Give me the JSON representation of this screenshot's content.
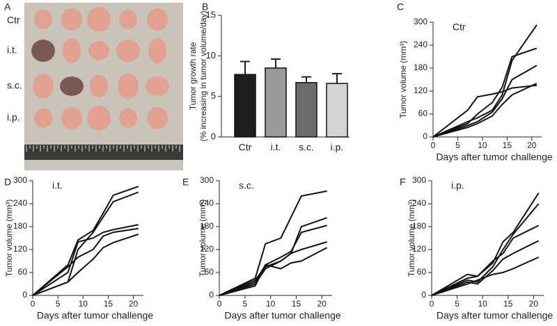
{
  "photo": {
    "panel_label": "A",
    "row_labels": [
      "Ctr",
      "i.t.",
      "s.c.",
      "i.p."
    ]
  },
  "chart_data": [
    {
      "type": "bar",
      "panel_label": "B",
      "ylabel": [
        "Tumor growth rate",
        "(% increasing in tumor volume/day)"
      ],
      "categories": [
        "Ctr",
        "i.t.",
        "s.c.",
        "i.p."
      ],
      "values": [
        7.7,
        8.5,
        6.7,
        6.6
      ],
      "errors": [
        1.6,
        1.1,
        0.7,
        1.2
      ],
      "colors": [
        "#1e1e1e",
        "#9a9a9a",
        "#6c6c6c",
        "#d4d4d4"
      ],
      "ylim": [
        0,
        15
      ],
      "yticks": [
        0,
        5,
        10,
        15
      ]
    },
    {
      "type": "line",
      "panel_label": "C",
      "title": "Ctr",
      "xlabel": "Days after tumor challenge",
      "ylabel": "Tumor volume (mm³)",
      "x": [
        0,
        7,
        9,
        12,
        14,
        16,
        21
      ],
      "color": "#111111",
      "xlim": [
        0,
        22
      ],
      "xticks": [
        0,
        5,
        10,
        15,
        20
      ],
      "ylim": [
        0,
        300
      ],
      "yticks": [
        0,
        60,
        120,
        180,
        240,
        300
      ],
      "series": [
        {
          "values": [
            0,
            40,
            50,
            70,
            110,
            200,
            293
          ]
        },
        {
          "values": [
            0,
            35,
            60,
            90,
            130,
            210,
            232
          ]
        },
        {
          "values": [
            0,
            30,
            40,
            65,
            100,
            150,
            187
          ]
        },
        {
          "values": [
            0,
            70,
            105,
            112,
            118,
            128,
            135
          ]
        },
        {
          "values": [
            0,
            25,
            35,
            55,
            85,
            110,
            140
          ]
        }
      ]
    },
    {
      "type": "line",
      "panel_label": "D",
      "title": "i.t.",
      "xlabel": "Days after tumor challenge",
      "ylabel": "Tumor volume (mm³)",
      "x": [
        0,
        7,
        9,
        12,
        14,
        16,
        21
      ],
      "color": "#111111",
      "xlim": [
        0,
        22
      ],
      "xticks": [
        0,
        5,
        10,
        15,
        20
      ],
      "ylim": [
        0,
        300
      ],
      "yticks": [
        0,
        60,
        120,
        180,
        240,
        300
      ],
      "series": [
        {
          "values": [
            0,
            80,
            145,
            170,
            215,
            262,
            285
          ]
        },
        {
          "values": [
            0,
            35,
            120,
            165,
            205,
            245,
            270
          ]
        },
        {
          "values": [
            0,
            60,
            140,
            150,
            165,
            172,
            185
          ]
        },
        {
          "values": [
            0,
            75,
            100,
            120,
            155,
            165,
            175
          ]
        },
        {
          "values": [
            0,
            35,
            60,
            95,
            125,
            138,
            160
          ]
        }
      ]
    },
    {
      "type": "line",
      "panel_label": "E",
      "title": "s.c.",
      "xlabel": "Days after tumor challenge",
      "ylabel": "Tumor volume (mm³)",
      "x": [
        0,
        7,
        9,
        12,
        14,
        16,
        21
      ],
      "color": "#111111",
      "xlim": [
        0,
        22
      ],
      "xticks": [
        0,
        5,
        10,
        15,
        20
      ],
      "ylim": [
        0,
        300
      ],
      "yticks": [
        0,
        60,
        120,
        180,
        240,
        300
      ],
      "series": [
        {
          "values": [
            0,
            45,
            135,
            150,
            205,
            260,
            273
          ]
        },
        {
          "values": [
            0,
            40,
            75,
            90,
            110,
            180,
            203
          ]
        },
        {
          "values": [
            0,
            35,
            80,
            100,
            115,
            165,
            183
          ]
        },
        {
          "values": [
            0,
            30,
            70,
            90,
            110,
            120,
            140
          ]
        },
        {
          "values": [
            0,
            25,
            80,
            70,
            85,
            90,
            125
          ]
        }
      ]
    },
    {
      "type": "line",
      "panel_label": "F",
      "title": "i.p.",
      "xlabel": "Days after tumor challenge",
      "ylabel": "Tumor volume (mm³)",
      "x": [
        0,
        7,
        9,
        12,
        14,
        16,
        21
      ],
      "color": "#111111",
      "xlim": [
        0,
        22
      ],
      "xticks": [
        0,
        5,
        10,
        15,
        20
      ],
      "ylim": [
        0,
        300
      ],
      "yticks": [
        0,
        60,
        120,
        180,
        240,
        300
      ],
      "series": [
        {
          "values": [
            0,
            45,
            50,
            85,
            140,
            165,
            268
          ]
        },
        {
          "values": [
            0,
            40,
            35,
            75,
            120,
            160,
            240
          ]
        },
        {
          "values": [
            0,
            55,
            50,
            90,
            110,
            150,
            183
          ]
        },
        {
          "values": [
            0,
            35,
            30,
            65,
            95,
            110,
            143
          ]
        },
        {
          "values": [
            0,
            30,
            40,
            55,
            60,
            70,
            100
          ]
        }
      ]
    }
  ]
}
